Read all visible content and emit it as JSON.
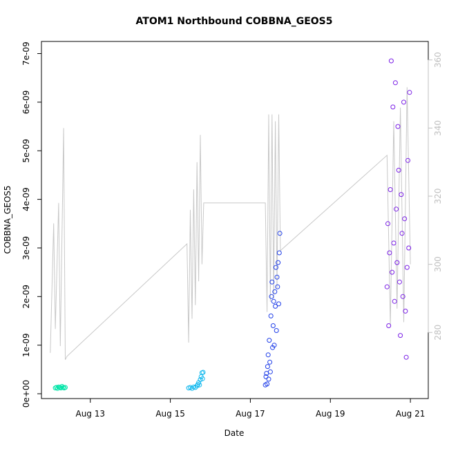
{
  "chart_data": {
    "type": "scatter",
    "title": "ATOM1 Northbound COBBNA_GEOS5",
    "xlabel": "Date",
    "ylabel": "COBBNA_GEOS5",
    "xlim": [
      "2016-08-11T22:00",
      "2016-08-21T07:00"
    ],
    "ylim": [
      0,
      7.15e-09
    ],
    "y_ticks": [
      "0e+00",
      "1e-09",
      "2e-09",
      "3e-09",
      "4e-09",
      "5e-09",
      "6e-09",
      "7e-09"
    ],
    "x_ticks": [
      {
        "label": "Aug 13",
        "date": "2016-08-13"
      },
      {
        "label": "Aug 15",
        "date": "2016-08-15"
      },
      {
        "label": "Aug 17",
        "date": "2016-08-17"
      },
      {
        "label": "Aug 19",
        "date": "2016-08-19"
      },
      {
        "label": "Aug 21",
        "date": "2016-08-21"
      }
    ],
    "y2lim": [
      262,
      364
    ],
    "y2_ticks": [
      "280",
      "300",
      "320",
      "340",
      "360"
    ],
    "grid": false,
    "legend": "none",
    "series": [
      {
        "color": "#00e5a8",
        "x": [
          "2016-08-12T03:00",
          "2016-08-12T03:40",
          "2016-08-12T04:20",
          "2016-08-12T05:00",
          "2016-08-12T05:40",
          "2016-08-12T06:20",
          "2016-08-12T07:00",
          "2016-08-12T07:40",
          "2016-08-12T08:20",
          "2016-08-12T09:00"
        ],
        "y": [
          1.2e-10,
          1.3e-10,
          1.1e-10,
          1.4e-10,
          1.3e-10,
          1.2e-10,
          1.5e-10,
          1.3e-10,
          1.2e-10,
          1.3e-10
        ]
      },
      {
        "color": "#10b8ee",
        "x": [
          "2016-08-15T11:00",
          "2016-08-15T12:00",
          "2016-08-15T13:00",
          "2016-08-15T14:00",
          "2016-08-15T15:00",
          "2016-08-15T16:00",
          "2016-08-15T16:30",
          "2016-08-15T17:00",
          "2016-08-15T17:30",
          "2016-08-15T18:00",
          "2016-08-15T18:30",
          "2016-08-15T19:00",
          "2016-08-15T19:20",
          "2016-08-15T19:40"
        ],
        "y": [
          1.2e-10,
          1.3e-10,
          1.1e-10,
          1.4e-10,
          1.3e-10,
          1.6e-10,
          1.9e-10,
          2.3e-10,
          1.8e-10,
          2.9e-10,
          3.5e-10,
          4.3e-10,
          3.1e-10,
          4.4e-10
        ]
      },
      {
        "color": "#1e3de8",
        "x": [
          "2016-08-17T09:00",
          "2016-08-17T09:20",
          "2016-08-17T09:40",
          "2016-08-17T10:00",
          "2016-08-17T10:20",
          "2016-08-17T10:40",
          "2016-08-17T11:00",
          "2016-08-17T11:20",
          "2016-08-17T11:40",
          "2016-08-17T12:00",
          "2016-08-17T12:20",
          "2016-08-17T12:40",
          "2016-08-17T13:00",
          "2016-08-17T13:20",
          "2016-08-17T13:40",
          "2016-08-17T14:00",
          "2016-08-17T14:20",
          "2016-08-17T14:40",
          "2016-08-17T15:00",
          "2016-08-17T15:20",
          "2016-08-17T15:40",
          "2016-08-17T16:00",
          "2016-08-17T16:20",
          "2016-08-17T16:40",
          "2016-08-17T17:00",
          "2016-08-17T17:20",
          "2016-08-17T17:40"
        ],
        "y": [
          1.8e-10,
          3.5e-10,
          4.2e-10,
          2e-10,
          5.6e-10,
          8e-10,
          3e-10,
          1.1e-09,
          6.5e-10,
          4.5e-10,
          1.6e-09,
          2e-09,
          2.3e-09,
          9.5e-10,
          1.4e-09,
          1.9e-09,
          1e-09,
          2.1e-09,
          1.8e-09,
          2.6e-09,
          1.3e-09,
          2.4e-09,
          2.2e-09,
          2.7e-09,
          1.85e-09,
          2.9e-09,
          3.3e-09
        ]
      },
      {
        "color": "#7a1ee6",
        "x": [
          "2016-08-20T10:00",
          "2016-08-20T10:30",
          "2016-08-20T11:00",
          "2016-08-20T11:30",
          "2016-08-20T12:00",
          "2016-08-20T12:30",
          "2016-08-20T13:00",
          "2016-08-20T13:30",
          "2016-08-20T14:00",
          "2016-08-20T14:30",
          "2016-08-20T15:00",
          "2016-08-20T15:30",
          "2016-08-20T16:00",
          "2016-08-20T16:30",
          "2016-08-20T17:00",
          "2016-08-20T17:30",
          "2016-08-20T18:00",
          "2016-08-20T18:30",
          "2016-08-20T19:00",
          "2016-08-20T19:30",
          "2016-08-20T20:00",
          "2016-08-20T20:30",
          "2016-08-20T21:00",
          "2016-08-20T21:30",
          "2016-08-20T22:00",
          "2016-08-20T22:30",
          "2016-08-20T23:00",
          "2016-08-20T23:30"
        ],
        "y": [
          2.2e-09,
          3.5e-09,
          1.4e-09,
          2.9e-09,
          4.2e-09,
          6.85e-09,
          2.5e-09,
          5.9e-09,
          3.1e-09,
          1.9e-09,
          6.4e-09,
          3.8e-09,
          2.7e-09,
          5.5e-09,
          4.6e-09,
          2.3e-09,
          1.2e-09,
          4.1e-09,
          3.3e-09,
          2e-09,
          6e-09,
          3.6e-09,
          1.7e-09,
          7.5e-10,
          2.6e-09,
          4.8e-09,
          3e-09,
          6.2e-09
        ]
      }
    ],
    "line_series": {
      "axis": "right",
      "color": "#c8c8c8",
      "x": [
        "2016-08-12T00:00",
        "2016-08-12T02:00",
        "2016-08-12T03:00",
        "2016-08-12T05:00",
        "2016-08-12T06:00",
        "2016-08-12T08:00",
        "2016-08-12T09:00",
        "2016-08-12T10:00",
        "2016-08-15T10:00",
        "2016-08-15T11:00",
        "2016-08-15T12:00",
        "2016-08-15T13:00",
        "2016-08-15T14:00",
        "2016-08-15T15:00",
        "2016-08-15T16:00",
        "2016-08-15T17:00",
        "2016-08-15T18:00",
        "2016-08-15T19:00",
        "2016-08-15T20:00",
        "2016-08-17T09:00",
        "2016-08-17T10:00",
        "2016-08-17T11:00",
        "2016-08-17T12:00",
        "2016-08-17T13:00",
        "2016-08-17T14:00",
        "2016-08-17T15:00",
        "2016-08-17T16:00",
        "2016-08-17T17:00",
        "2016-08-17T18:00",
        "2016-08-20T10:00",
        "2016-08-20T12:00",
        "2016-08-20T14:00",
        "2016-08-20T16:00",
        "2016-08-20T18:00",
        "2016-08-20T20:00",
        "2016-08-20T22:00",
        "2016-08-21T00:00"
      ],
      "y": [
        274,
        312,
        281,
        318,
        276,
        340,
        272,
        273,
        306,
        277,
        316,
        284,
        322,
        288,
        330,
        295,
        338,
        300,
        318,
        318,
        286,
        344,
        289,
        344,
        290,
        342,
        293,
        344,
        304,
        332,
        282,
        342,
        287,
        346,
        283,
        352,
        300
      ]
    }
  }
}
